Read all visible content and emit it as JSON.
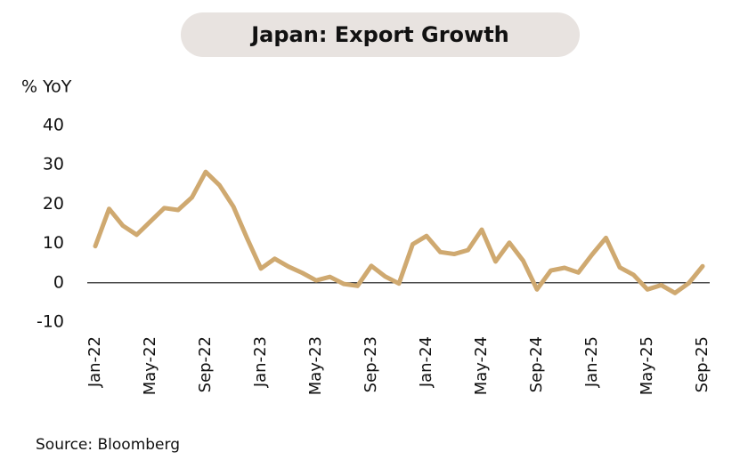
{
  "chart_data": {
    "type": "line",
    "title": "Japan: Export Growth",
    "y_label": "% YoY",
    "source": "Source: Bloomberg",
    "categories": [
      "Jan-22",
      null,
      null,
      null,
      "May-22",
      null,
      null,
      null,
      "Sep-22",
      null,
      null,
      null,
      "Jan-23",
      null,
      null,
      null,
      "May-23",
      null,
      null,
      null,
      "Sep-23",
      null,
      null,
      null,
      "Jan-24",
      null,
      null,
      null,
      "May-24",
      null,
      null,
      null,
      "Sep-24",
      null,
      null,
      null,
      "Jan-25",
      null,
      null,
      null,
      "May-25",
      null,
      null,
      null,
      "Sep-25"
    ],
    "series": [
      {
        "name": "Exports",
        "color": "#cfa970",
        "values": [
          9.3,
          18.8,
          14.5,
          12.2,
          15.6,
          19.0,
          18.5,
          21.7,
          28.2,
          24.8,
          19.4,
          11.3,
          3.6,
          6.1,
          4.1,
          2.5,
          0.6,
          1.5,
          -0.3,
          -0.8,
          4.3,
          1.6,
          -0.2,
          9.8,
          11.9,
          7.8,
          7.3,
          8.3,
          13.5,
          5.4,
          10.2,
          5.6,
          -1.7,
          3.1,
          3.8,
          2.6,
          7.2,
          11.4,
          3.9,
          2.0,
          -1.7,
          -0.6,
          -2.6,
          -0.1,
          4.2
        ]
      }
    ],
    "ylim": [
      -10,
      40
    ],
    "yticks": [
      -10,
      0,
      10,
      20,
      30,
      40
    ],
    "grid": false
  }
}
